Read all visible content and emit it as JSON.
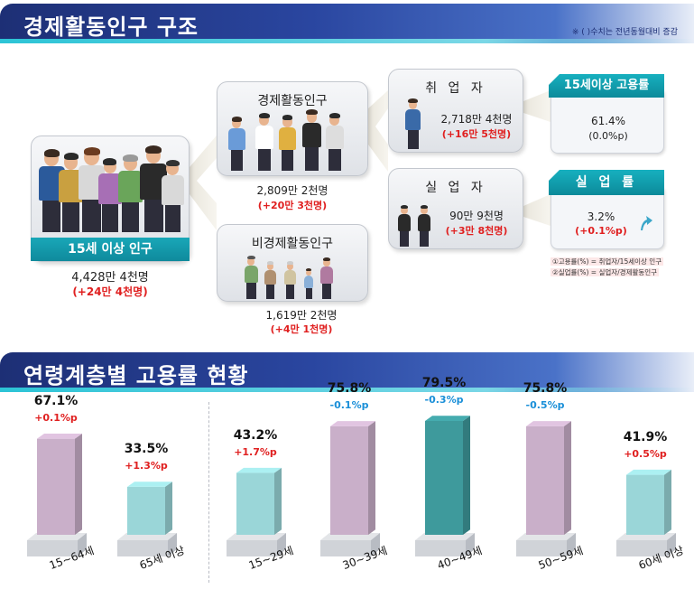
{
  "section1": {
    "title": "경제활동인구 구조",
    "note": "※ ( )수치는 전년동월대비 증감"
  },
  "pop15": {
    "label": "15세 이상 인구",
    "value": "4,428만 4천명",
    "change": "(+24만 4천명)"
  },
  "active": {
    "title": "경제활동인구",
    "value": "2,809만 2천명",
    "change": "(+20만 3천명)"
  },
  "inactive": {
    "title": "비경제활동인구",
    "value": "1,619만 2천명",
    "change": "(+4만 1천명)"
  },
  "employed": {
    "title": "취 업 자",
    "value": "2,718만 4천명",
    "change": "(+16만 5천명)"
  },
  "unemployed": {
    "title": "실 업 자",
    "value": "90만 9천명",
    "change": "(+3만 8천명)"
  },
  "employment_rate": {
    "title": "15세이상 고용률",
    "value": "61.4%",
    "change": "(0.0%p)"
  },
  "unemployment_rate": {
    "title": "실 업 률",
    "value": "3.2%",
    "change": "(+0.1%p)"
  },
  "formulas": {
    "f1": "①고용률(%) = 취업자/15세이상 인구",
    "f2": "②실업률(%) = 실업자/경제활동인구"
  },
  "section2": {
    "title": "연령계층별 고용률 현황"
  },
  "colors": {
    "purple": "#c9afc9",
    "teal_light": "#9ad6d8",
    "teal_dark": "#3e9a9c",
    "red": "#e02020",
    "blue": "#1a8fd8"
  },
  "chart_data": {
    "type": "bar",
    "title": "연령계층별 고용률 현황",
    "categories": [
      "15~64세",
      "65세 이상",
      "15~29세",
      "30~39세",
      "40~49세",
      "50~59세",
      "60세 이상"
    ],
    "values": [
      67.1,
      33.5,
      43.2,
      75.8,
      79.5,
      75.8,
      41.9
    ],
    "value_labels": [
      "67.1%",
      "33.5%",
      "43.2%",
      "75.8%",
      "79.5%",
      "75.8%",
      "41.9%"
    ],
    "changes": [
      "+0.1%p",
      "+1.3%p",
      "+1.7%p",
      "-0.1%p",
      "-0.3%p",
      "-0.5%p",
      "+0.5%p"
    ],
    "change_colors": [
      "red",
      "red",
      "red",
      "blue",
      "blue",
      "blue",
      "red"
    ],
    "bar_colors": [
      "purple",
      "teal_light",
      "teal_light",
      "purple",
      "teal_dark",
      "purple",
      "teal_light"
    ],
    "ylim": [
      0,
      100
    ],
    "unit": "%"
  }
}
